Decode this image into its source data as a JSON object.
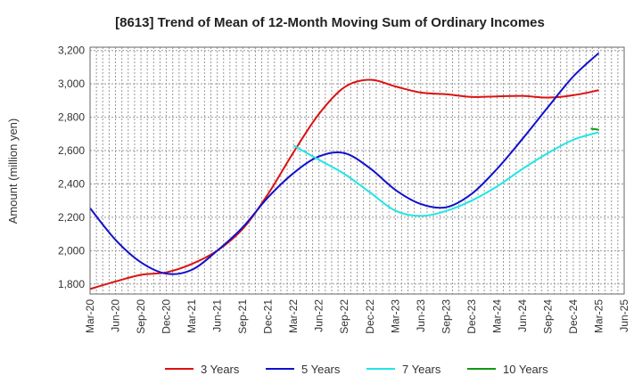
{
  "chart_data": {
    "type": "line",
    "title": "[8613]  Trend of Mean of 12-Month Moving Sum of Ordinary Incomes",
    "xlabel": "",
    "ylabel": "Amount (million yen)",
    "ylim": [
      1740,
      3220
    ],
    "yticks": [
      1800,
      2000,
      2200,
      2400,
      2600,
      2800,
      3000,
      3200
    ],
    "ytick_labels": [
      "1,800",
      "2,000",
      "2,200",
      "2,400",
      "2,600",
      "2,800",
      "3,000",
      "3,200"
    ],
    "categories": [
      "Mar-20",
      "Jun-20",
      "Sep-20",
      "Dec-20",
      "Mar-21",
      "Jun-21",
      "Sep-21",
      "Dec-21",
      "Mar-22",
      "Jun-22",
      "Sep-22",
      "Dec-22",
      "Mar-23",
      "Jun-23",
      "Sep-23",
      "Dec-23",
      "Mar-24",
      "Jun-24",
      "Sep-24",
      "Dec-24",
      "Mar-25",
      "Jun-25"
    ],
    "grid": true,
    "legend_position": "bottom",
    "series": [
      {
        "name": "3 Years",
        "color": "#dd1111",
        "values": [
          1770,
          1815,
          1855,
          1870,
          1920,
          2000,
          2130,
          2340,
          2590,
          2820,
          2980,
          3025,
          2985,
          2948,
          2938,
          2922,
          2925,
          2928,
          2918,
          2932,
          2962,
          null
        ]
      },
      {
        "name": "5 Years",
        "color": "#1111cc",
        "values": [
          2255,
          2065,
          1930,
          1862,
          1885,
          2000,
          2140,
          2320,
          2465,
          2565,
          2585,
          2495,
          2365,
          2280,
          2260,
          2340,
          2490,
          2670,
          2860,
          3045,
          3185,
          null
        ]
      },
      {
        "name": "7 Years",
        "color": "#22e5e5",
        "values": [
          null,
          null,
          null,
          null,
          null,
          null,
          null,
          null,
          2630,
          2545,
          2460,
          2350,
          2240,
          2208,
          2238,
          2300,
          2385,
          2490,
          2585,
          2665,
          2710,
          null
        ]
      },
      {
        "name": "10 Years",
        "color": "#119911",
        "values": [
          null,
          null,
          null,
          null,
          null,
          null,
          null,
          null,
          null,
          null,
          null,
          null,
          null,
          null,
          null,
          null,
          null,
          null,
          null,
          null,
          2725,
          null
        ],
        "segment_start": 2732
      }
    ]
  }
}
